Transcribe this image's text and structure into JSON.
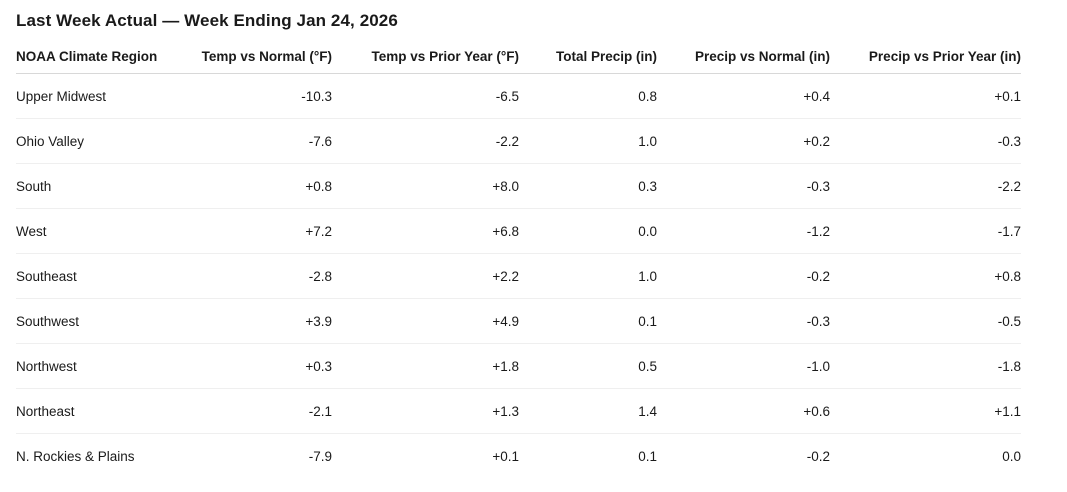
{
  "page": {
    "title": "Last Week Actual — Week Ending Jan 24, 2026"
  },
  "table": {
    "columns": [
      "NOAA Climate Region",
      "Temp vs Normal (°F)",
      "Temp vs Prior Year (°F)",
      "Total Precip (in)",
      "Precip vs Normal (in)",
      "Precip vs Prior Year (in)"
    ],
    "rows": [
      [
        "Upper Midwest",
        "-10.3",
        "-6.5",
        "0.8",
        "+0.4",
        "+0.1"
      ],
      [
        "Ohio Valley",
        "-7.6",
        "-2.2",
        "1.0",
        "+0.2",
        "-0.3"
      ],
      [
        "South",
        "+0.8",
        "+8.0",
        "0.3",
        "-0.3",
        "-2.2"
      ],
      [
        "West",
        "+7.2",
        "+6.8",
        "0.0",
        "-1.2",
        "-1.7"
      ],
      [
        "Southeast",
        "-2.8",
        "+2.2",
        "1.0",
        "-0.2",
        "+0.8"
      ],
      [
        "Southwest",
        "+3.9",
        "+4.9",
        "0.1",
        "-0.3",
        "-0.5"
      ],
      [
        "Northwest",
        "+0.3",
        "+1.8",
        "0.5",
        "-1.0",
        "-1.8"
      ],
      [
        "Northeast",
        "-2.1",
        "+1.3",
        "1.4",
        "+0.6",
        "+1.1"
      ],
      [
        "N. Rockies & Plains",
        "-7.9",
        "+0.1",
        "0.1",
        "-0.2",
        "0.0"
      ]
    ]
  },
  "colors": {
    "text": "#1a1a1a",
    "header_border": "#d8d8d8",
    "row_border": "#efefef",
    "background": "#ffffff"
  }
}
